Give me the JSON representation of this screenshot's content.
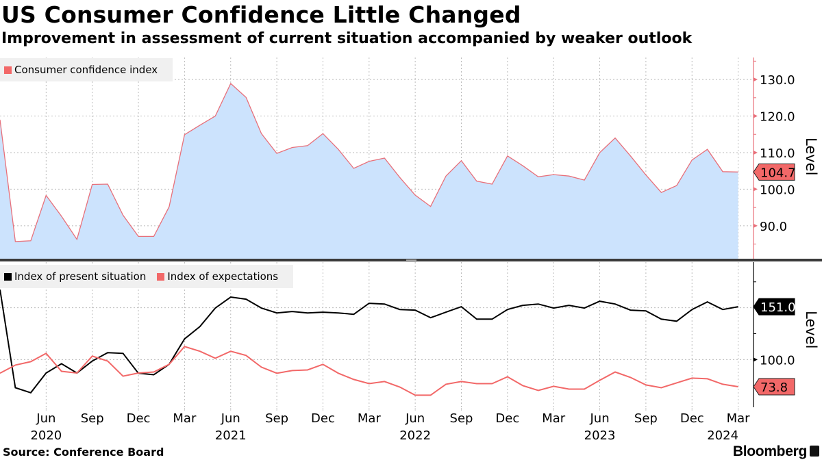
{
  "header": {
    "title": "US Consumer Confidence Little Changed",
    "subtitle": "Improvement in assessment of current situation accompanied by weaker outlook"
  },
  "footer": {
    "source": "Source: Conference Board",
    "brand": "Bloomberg",
    "brand_icon": "bloomberg-chart-icon"
  },
  "colors": {
    "confidence_line": "#e8707a",
    "confidence_fill": "#cce3fd",
    "present": "#000000",
    "expectations": "#f26868",
    "grid": "#bbbbbb",
    "legend_bg": "#f0f0f0"
  },
  "chart_data": [
    {
      "type": "area",
      "title": "Consumer confidence index",
      "ylabel": "Level",
      "ylim": [
        81,
        136
      ],
      "yticks": [
        90,
        100,
        110,
        120,
        130
      ],
      "ytick_labels": [
        "90.0",
        "100.0",
        "110.0",
        "120.0",
        "130.0"
      ],
      "legend": [
        "Consumer confidence index"
      ],
      "legend_position": "top-left",
      "grid": true,
      "x_start": "2020-03",
      "series": [
        {
          "name": "Consumer confidence index",
          "last_value_label": "104.7",
          "values": [
            119.0,
            85.7,
            85.9,
            98.3,
            92.6,
            86.3,
            101.3,
            101.4,
            92.9,
            87.1,
            87.1,
            95.2,
            114.9,
            117.5,
            120.0,
            128.9,
            125.1,
            115.2,
            109.8,
            111.4,
            111.9,
            115.2,
            110.9,
            105.7,
            107.6,
            108.5,
            103.2,
            98.4,
            95.3,
            103.6,
            107.8,
            102.2,
            101.4,
            109.1,
            106.4,
            103.4,
            104.0,
            103.6,
            102.5,
            110.0,
            114.0,
            109.1,
            103.9,
            99.1,
            101.0,
            108.0,
            110.9,
            104.8,
            104.7
          ]
        }
      ]
    },
    {
      "type": "line",
      "ylabel": "Level",
      "ylim": [
        54,
        194
      ],
      "yticks": [
        100
      ],
      "ytick_labels": [
        "100.0"
      ],
      "minor_ticks": [
        125,
        150,
        175
      ],
      "legend": [
        "Index of present situation",
        "Index of expectations"
      ],
      "legend_position": "top-left",
      "grid": true,
      "x_start": "2020-03",
      "x_tick_labels": [
        "Jun",
        "Sep",
        "Dec",
        "Mar",
        "Jun",
        "Sep",
        "Dec",
        "Mar",
        "Jun",
        "Sep",
        "Dec",
        "Mar",
        "Jun",
        "Sep",
        "Dec",
        "Mar"
      ],
      "x_tick_months": [
        3,
        6,
        9,
        12,
        15,
        18,
        21,
        24,
        27,
        30,
        33,
        36,
        39,
        42,
        45,
        48
      ],
      "x_year_labels": [
        {
          "label": "2020",
          "month": 3
        },
        {
          "label": "2021",
          "month": 15
        },
        {
          "label": "2022",
          "month": 27
        },
        {
          "label": "2023",
          "month": 39
        },
        {
          "label": "2024",
          "month": 47
        }
      ],
      "series": [
        {
          "name": "Index of present situation",
          "last_value_label": "151.0",
          "values": [
            167.5,
            72.8,
            68.0,
            87.0,
            96.0,
            87.0,
            98.6,
            106.6,
            106.0,
            86.8,
            85.4,
            95.4,
            119.9,
            131.8,
            149.7,
            160.3,
            158.3,
            149.7,
            145.0,
            146.4,
            145.0,
            145.7,
            145.0,
            143.7,
            154.3,
            153.6,
            148.3,
            147.7,
            140.4,
            145.7,
            151.0,
            139.0,
            139.0,
            148.3,
            152.3,
            153.6,
            149.7,
            152.3,
            149.7,
            156.3,
            153.6,
            147.7,
            147.0,
            139.0,
            137.0,
            148.3,
            155.6,
            148.3,
            151.0
          ]
        },
        {
          "name": "Index of expectations",
          "last_value_label": "73.8",
          "values": [
            86.9,
            94.7,
            98.0,
            106.0,
            88.7,
            87.0,
            103.3,
            98.6,
            84.0,
            87.0,
            88.0,
            95.4,
            112.6,
            108.0,
            101.3,
            108.0,
            104.0,
            92.7,
            86.8,
            89.4,
            90.0,
            95.4,
            86.8,
            80.8,
            76.8,
            78.8,
            73.5,
            65.6,
            65.6,
            76.2,
            78.8,
            76.8,
            76.8,
            83.4,
            74.8,
            70.2,
            74.2,
            71.5,
            71.5,
            80.0,
            88.0,
            82.8,
            75.5,
            72.8,
            77.5,
            82.1,
            81.5,
            76.2,
            73.8
          ]
        }
      ]
    }
  ]
}
